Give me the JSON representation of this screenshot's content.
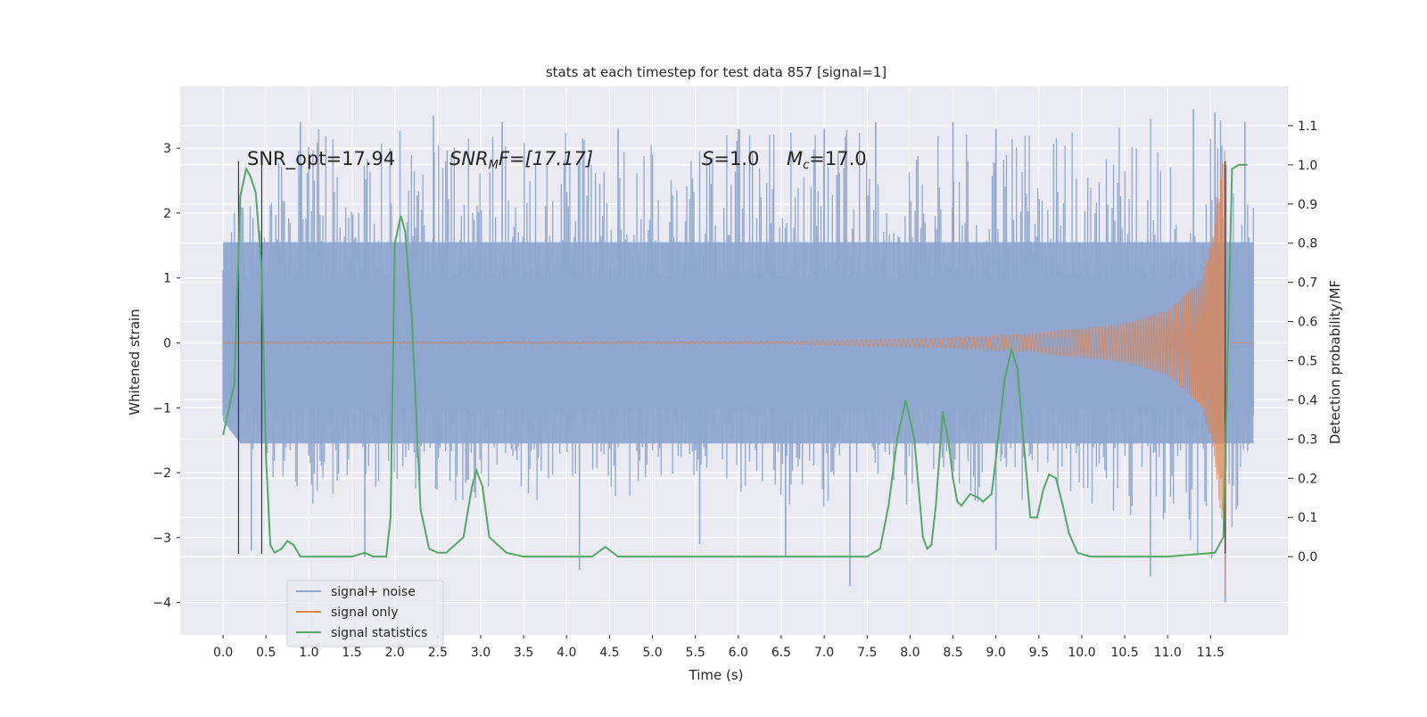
{
  "chart_data": {
    "type": "line",
    "title": "stats at each timestep for test data 857 [signal=1]",
    "xlabel": "Time (s)",
    "ylabel_left": "Whitened strain",
    "ylabel_right": "Detection probability/MF",
    "xlim": [
      -0.5,
      12.4
    ],
    "ylim_left": [
      -4.5,
      3.95
    ],
    "ylim_right": [
      -0.2,
      1.2
    ],
    "x_ticks": [
      "0.0",
      "0.5",
      "1.0",
      "1.5",
      "2.0",
      "2.5",
      "3.0",
      "3.5",
      "4.0",
      "4.5",
      "5.0",
      "5.5",
      "6.0",
      "6.5",
      "7.0",
      "7.5",
      "8.0",
      "8.5",
      "9.0",
      "9.5",
      "10.0",
      "10.5",
      "11.0",
      "11.5"
    ],
    "y_ticks_left": [
      "3",
      "2",
      "1",
      "0",
      "−1",
      "−2",
      "−3",
      "−4"
    ],
    "y_ticks_right": [
      "1.1",
      "1.0",
      "0.9",
      "0.8",
      "0.7",
      "0.6",
      "0.5",
      "0.4",
      "0.3",
      "0.2",
      "0.1",
      "0.0"
    ],
    "grid": true,
    "legend_position": "lower-left",
    "background": "#eaeaf2",
    "annotations": {
      "snr_opt": "SNR_opt=17.94",
      "snr_mf_name": "SNR",
      "snr_mf_sub": "M",
      "snr_mf_rest": "F=[17.17]",
      "s_name": "S",
      "s_rest": "=1.0",
      "mc_name": "M",
      "mc_sub": "c",
      "mc_rest": "=17.0"
    },
    "vertical_markers": [
      0.18,
      0.45,
      11.67
    ],
    "series": [
      {
        "name": "signal+ noise",
        "color": "#8fa6cf",
        "axis": "left",
        "kind": "noise_band",
        "x_range": [
          0.0,
          12.0
        ],
        "envelope_points": [
          [
            0.0,
            2.0,
            -1.2
          ],
          [
            0.5,
            3.2,
            -2.2
          ],
          [
            1.0,
            3.3,
            -2.5
          ],
          [
            2.0,
            3.3,
            -2.4
          ],
          [
            3.0,
            3.3,
            -2.5
          ],
          [
            4.0,
            3.3,
            -2.4
          ],
          [
            5.0,
            3.2,
            -2.4
          ],
          [
            6.0,
            3.3,
            -2.5
          ],
          [
            7.0,
            3.3,
            -2.6
          ],
          [
            8.0,
            3.3,
            -2.5
          ],
          [
            9.0,
            3.3,
            -2.6
          ],
          [
            10.0,
            3.3,
            -2.6
          ],
          [
            11.0,
            3.5,
            -2.8
          ],
          [
            11.6,
            3.6,
            -3.6
          ],
          [
            12.0,
            2.2,
            -2.3
          ]
        ],
        "extreme_spikes": [
          [
            0.33,
            -3.2
          ],
          [
            0.9,
            3.4
          ],
          [
            1.65,
            -3.3
          ],
          [
            2.45,
            3.5
          ],
          [
            3.25,
            3.4
          ],
          [
            4.15,
            -3.5
          ],
          [
            4.6,
            3.3
          ],
          [
            5.55,
            -3.1
          ],
          [
            6.55,
            -3.3
          ],
          [
            7.0,
            3.3
          ],
          [
            7.3,
            -3.75
          ],
          [
            7.6,
            3.4
          ],
          [
            8.5,
            3.4
          ],
          [
            9.0,
            3.3
          ],
          [
            9.0,
            -3.2
          ],
          [
            10.8,
            -3.6
          ],
          [
            11.3,
            3.6
          ],
          [
            11.55,
            3.55
          ],
          [
            11.67,
            -4.0
          ],
          [
            11.9,
            3.4
          ]
        ]
      },
      {
        "name": "signal only",
        "color": "#dd8452",
        "axis": "left",
        "kind": "chirp",
        "x_range": [
          0.0,
          12.0
        ],
        "merger_time": 11.67,
        "amplitude_points": [
          [
            0.0,
            0.01
          ],
          [
            6.5,
            0.02
          ],
          [
            7.5,
            0.05
          ],
          [
            8.5,
            0.08
          ],
          [
            9.5,
            0.15
          ],
          [
            10.5,
            0.3
          ],
          [
            11.0,
            0.5
          ],
          [
            11.4,
            1.0
          ],
          [
            11.55,
            1.8
          ],
          [
            11.65,
            3.1
          ]
        ]
      },
      {
        "name": "signal statistics",
        "color": "#55a868",
        "axis": "right",
        "kind": "line",
        "x": [
          0.0,
          0.13,
          0.2,
          0.27,
          0.32,
          0.38,
          0.45,
          0.5,
          0.55,
          0.6,
          0.68,
          0.75,
          0.82,
          0.9,
          1.0,
          1.5,
          1.65,
          1.75,
          1.9,
          1.95,
          2.0,
          2.07,
          2.12,
          2.2,
          2.3,
          2.4,
          2.5,
          2.6,
          2.8,
          2.9,
          2.95,
          3.02,
          3.1,
          3.2,
          3.3,
          3.5,
          3.7,
          4.0,
          4.3,
          4.45,
          4.6,
          4.75,
          5.0,
          5.5,
          6.0,
          7.0,
          7.3,
          7.5,
          7.65,
          7.75,
          7.85,
          7.95,
          8.05,
          8.15,
          8.2,
          8.25,
          8.3,
          8.38,
          8.45,
          8.5,
          8.55,
          8.6,
          8.7,
          8.8,
          8.85,
          8.95,
          9.0,
          9.1,
          9.18,
          9.25,
          9.32,
          9.4,
          9.48,
          9.55,
          9.62,
          9.7,
          9.78,
          9.85,
          9.95,
          10.1,
          11.0,
          11.55,
          11.65,
          11.75,
          11.83,
          11.93
        ],
        "y": [
          0.31,
          0.44,
          0.92,
          0.99,
          0.97,
          0.93,
          0.73,
          0.25,
          0.03,
          0.01,
          0.02,
          0.04,
          0.03,
          0.0,
          0.0,
          0.0,
          0.01,
          0.0,
          0.0,
          0.1,
          0.8,
          0.87,
          0.83,
          0.6,
          0.12,
          0.02,
          0.01,
          0.01,
          0.05,
          0.18,
          0.22,
          0.18,
          0.05,
          0.03,
          0.01,
          0.0,
          0.0,
          0.0,
          0.0,
          0.025,
          0.0,
          0.0,
          0.0,
          0.0,
          0.0,
          0.0,
          0.0,
          0.0,
          0.02,
          0.13,
          0.3,
          0.4,
          0.3,
          0.05,
          0.02,
          0.03,
          0.13,
          0.37,
          0.29,
          0.2,
          0.14,
          0.13,
          0.16,
          0.15,
          0.14,
          0.16,
          0.25,
          0.45,
          0.53,
          0.48,
          0.3,
          0.1,
          0.1,
          0.17,
          0.21,
          0.2,
          0.13,
          0.06,
          0.01,
          0.0,
          0.0,
          0.01,
          0.05,
          0.99,
          1.0,
          1.0
        ]
      }
    ]
  }
}
